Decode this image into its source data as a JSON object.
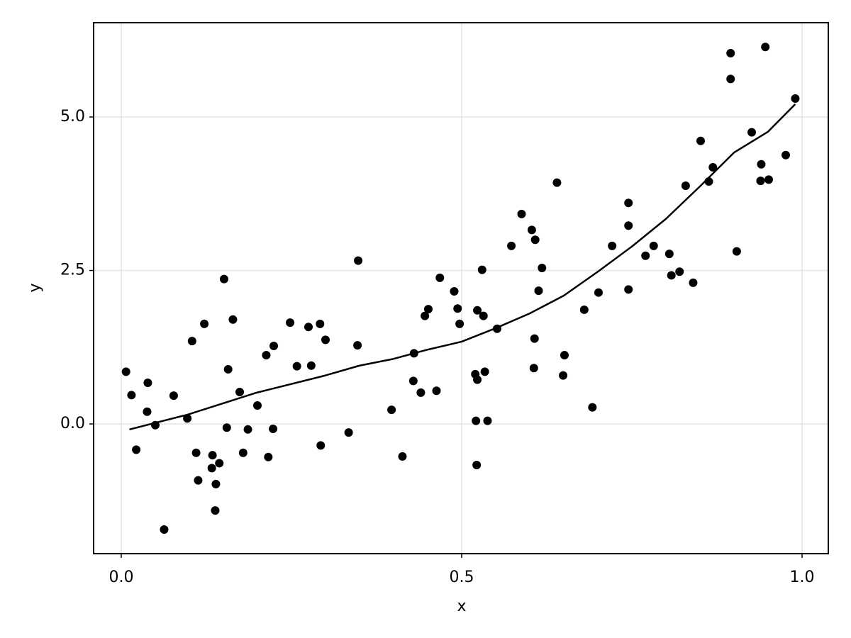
{
  "chart_data": {
    "type": "scatter",
    "xlabel": "x",
    "ylabel": "y",
    "xlim": [
      -0.0406,
      1.0385
    ],
    "ylim": [
      -2.113,
      6.536
    ],
    "xticks": [
      {
        "value": 0,
        "label": "0.0"
      },
      {
        "value": 0.5,
        "label": "0.5"
      },
      {
        "value": 1,
        "label": "1.0"
      }
    ],
    "yticks": [
      {
        "value": 0,
        "label": "0.0"
      },
      2.5,
      {
        "value": 5,
        "label": "5.0"
      }
    ],
    "grid": true,
    "series": [
      {
        "type": "scatter",
        "color": "#000000",
        "x": [
          0.007,
          0.015,
          0.022,
          0.039,
          0.038,
          0.05,
          0.063,
          0.077,
          0.097,
          0.104,
          0.11,
          0.113,
          0.122,
          0.133,
          0.134,
          0.139,
          0.138,
          0.144,
          0.151,
          0.155,
          0.157,
          0.164,
          0.174,
          0.179,
          0.186,
          0.2,
          0.213,
          0.216,
          0.223,
          0.224,
          0.248,
          0.258,
          0.275,
          0.279,
          0.292,
          0.293,
          0.3,
          0.334,
          0.347,
          0.348,
          0.397,
          0.413,
          0.429,
          0.43,
          0.44,
          0.446,
          0.451,
          0.463,
          0.468,
          0.489,
          0.494,
          0.497,
          0.52,
          0.521,
          0.523,
          0.523,
          0.522,
          0.53,
          0.532,
          0.534,
          0.538,
          0.552,
          0.573,
          0.588,
          0.603,
          0.606,
          0.607,
          0.608,
          0.613,
          0.618,
          0.64,
          0.649,
          0.651,
          0.68,
          0.692,
          0.701,
          0.721,
          0.745,
          0.745,
          0.745,
          0.77,
          0.782,
          0.805,
          0.808,
          0.82,
          0.829,
          0.84,
          0.851,
          0.863,
          0.869,
          0.895,
          0.895,
          0.904,
          0.926,
          0.94,
          0.939,
          0.946,
          0.951,
          0.976,
          0.99
        ],
        "values": [
          0.85,
          0.47,
          -0.42,
          0.67,
          0.2,
          -0.02,
          -1.72,
          0.46,
          0.09,
          1.35,
          -0.47,
          -0.92,
          1.63,
          -0.72,
          -0.51,
          -0.98,
          -1.41,
          -0.64,
          2.36,
          -0.06,
          0.89,
          1.7,
          0.52,
          -0.47,
          -0.09,
          0.3,
          1.12,
          -0.54,
          -0.08,
          1.27,
          1.65,
          0.94,
          1.58,
          0.95,
          1.63,
          -0.35,
          1.37,
          -0.14,
          1.28,
          2.66,
          0.23,
          -0.53,
          0.7,
          1.15,
          0.51,
          1.76,
          1.87,
          0.54,
          2.38,
          2.16,
          1.88,
          1.63,
          0.81,
          0.05,
          1.85,
          0.72,
          -0.67,
          2.51,
          1.76,
          0.85,
          0.05,
          1.55,
          2.9,
          3.42,
          3.16,
          0.91,
          1.39,
          3.0,
          2.17,
          2.54,
          3.93,
          0.79,
          1.12,
          1.86,
          0.27,
          2.14,
          2.9,
          3.6,
          3.23,
          2.19,
          2.74,
          2.9,
          2.77,
          2.42,
          2.48,
          3.88,
          2.3,
          4.61,
          3.95,
          4.18,
          6.04,
          5.62,
          2.81,
          4.75,
          4.23,
          3.96,
          6.14,
          3.98,
          4.38,
          5.3
        ]
      },
      {
        "type": "line",
        "color": "#000000",
        "x": [
          0.012,
          0.097,
          0.199,
          0.3,
          0.35,
          0.4,
          0.45,
          0.5,
          0.55,
          0.6,
          0.65,
          0.7,
          0.75,
          0.8,
          0.85,
          0.9,
          0.95,
          0.99
        ],
        "values": [
          -0.09,
          0.15,
          0.51,
          0.79,
          0.95,
          1.06,
          1.21,
          1.34,
          1.56,
          1.8,
          2.09,
          2.48,
          2.89,
          3.34,
          3.87,
          4.42,
          4.76,
          5.21
        ]
      }
    ]
  }
}
